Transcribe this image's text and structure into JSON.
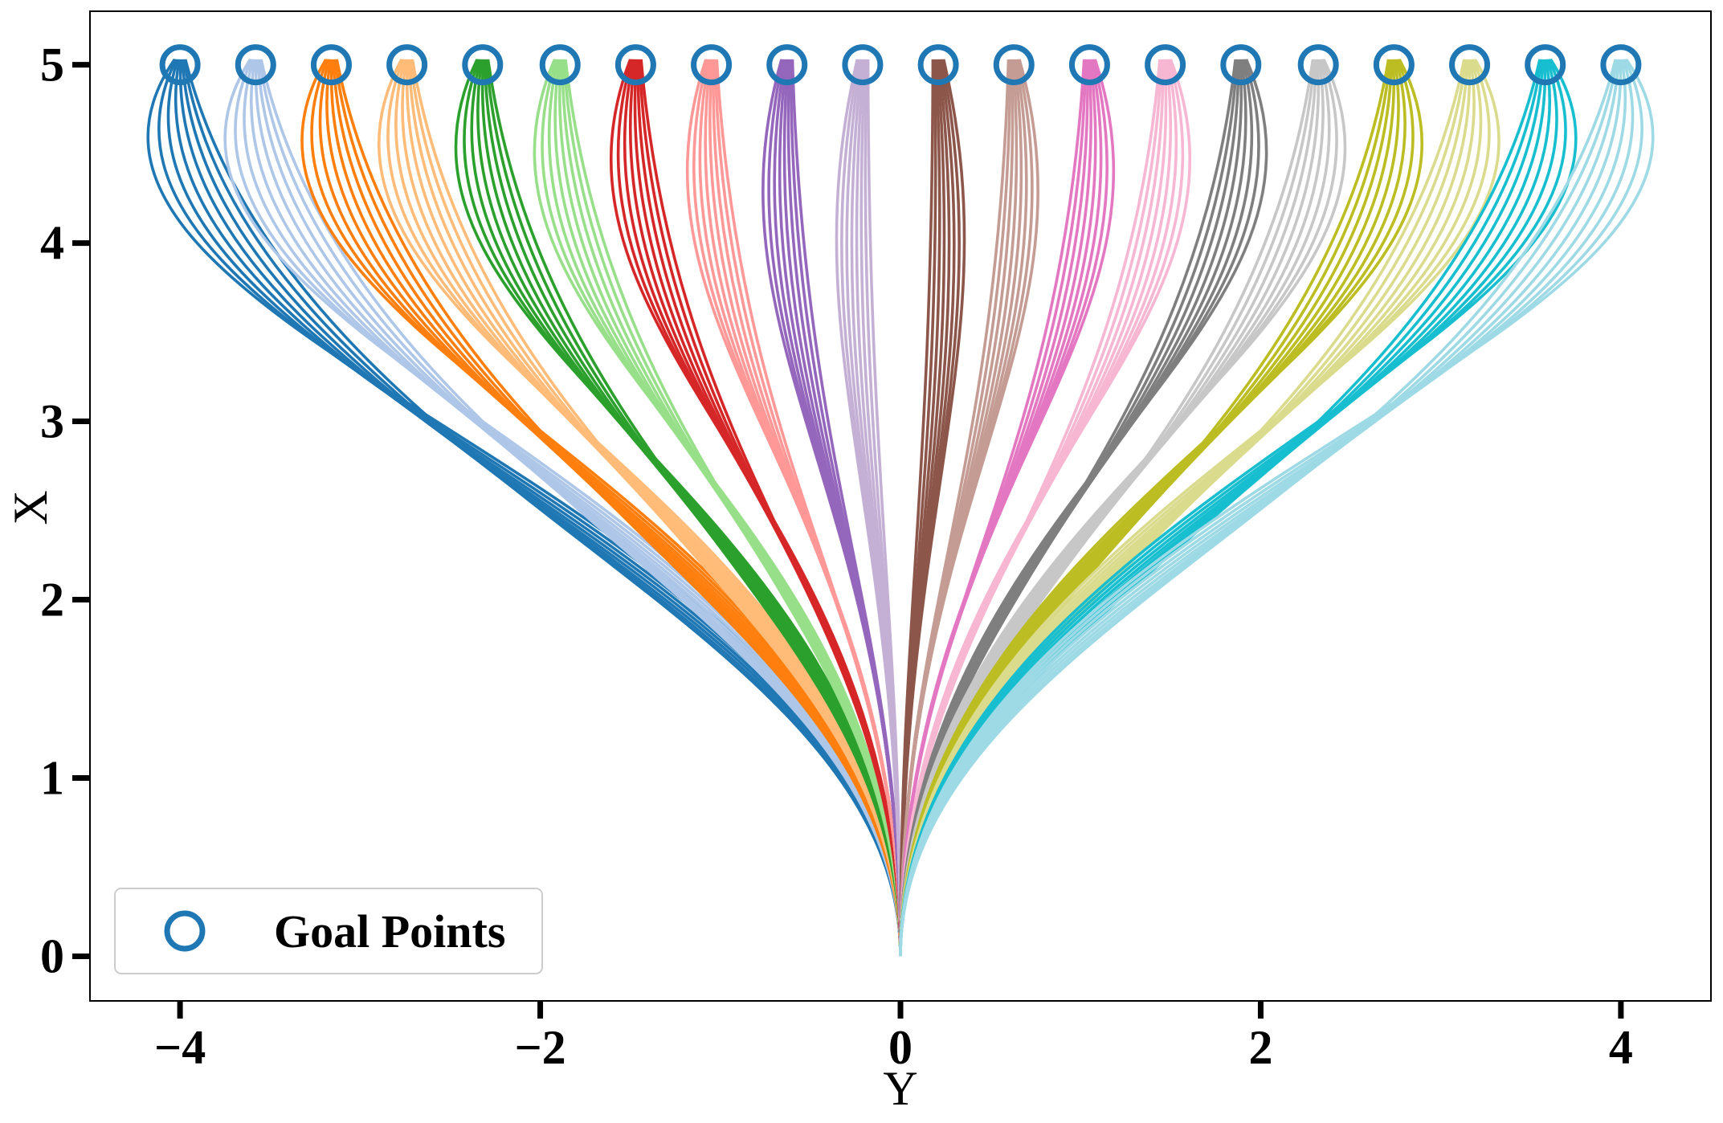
{
  "chart_data": {
    "type": "line",
    "title": "",
    "xlabel": "Y",
    "ylabel": "X",
    "xlim": [
      -4.5,
      4.5
    ],
    "ylim": [
      -0.25,
      5.3
    ],
    "xticks": [
      -4,
      -2,
      0,
      2,
      4
    ],
    "xtick_labels": [
      "−4",
      "−2",
      "0",
      "2",
      "4"
    ],
    "yticks": [
      0,
      1,
      2,
      3,
      4,
      5
    ],
    "ytick_labels": [
      "0",
      "1",
      "2",
      "3",
      "4",
      "5"
    ],
    "grid": false,
    "legend": {
      "placement": "lower-left",
      "entries": [
        {
          "label": "Goal Points",
          "marker": "circle-open",
          "color": "#1f77b4"
        }
      ]
    },
    "origin": [
      0,
      0
    ],
    "curves_per_goal": 8,
    "colors": [
      "#1f77b4",
      "#aec7e8",
      "#ff7f0e",
      "#ffbb78",
      "#2ca02c",
      "#98df8a",
      "#d62728",
      "#ff9896",
      "#9467bd",
      "#c5b0d5",
      "#8c564b",
      "#c49c94",
      "#e377c2",
      "#f7b6d2",
      "#7f7f7f",
      "#c7c7c7",
      "#bcbd22",
      "#dbdb8d",
      "#17becf",
      "#9edae5"
    ],
    "goal_points": {
      "name": "Goal Points",
      "x": [
        -4.0,
        -3.58,
        -3.16,
        -2.74,
        -2.32,
        -1.89,
        -1.47,
        -1.05,
        -0.63,
        -0.21,
        0.21,
        0.63,
        1.05,
        1.47,
        1.89,
        2.32,
        2.74,
        3.16,
        3.58,
        4.0
      ],
      "y": [
        5,
        5,
        5,
        5,
        5,
        5,
        5,
        5,
        5,
        5,
        5,
        5,
        5,
        5,
        5,
        5,
        5,
        5,
        5,
        5
      ]
    }
  }
}
